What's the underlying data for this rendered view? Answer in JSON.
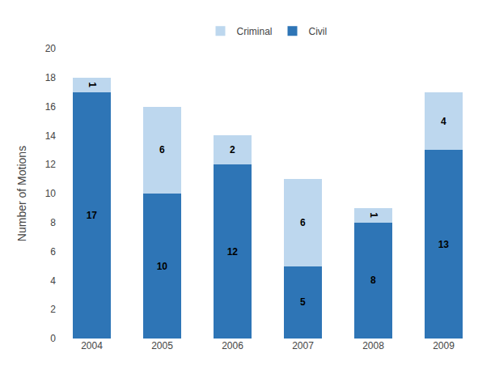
{
  "chart_data": {
    "type": "bar",
    "stacked": true,
    "categories": [
      "2004",
      "2005",
      "2006",
      "2007",
      "2008",
      "2009"
    ],
    "series": [
      {
        "name": "Civil",
        "color": "#2E75B6",
        "values": [
          17,
          10,
          12,
          5,
          8,
          13
        ]
      },
      {
        "name": "Criminal",
        "color": "#BDD7EE",
        "values": [
          1,
          6,
          2,
          6,
          1,
          4
        ]
      }
    ],
    "ylabel": "Number of Motions",
    "ylim": [
      0,
      20
    ],
    "yticks": [
      0,
      2,
      4,
      6,
      8,
      10,
      12,
      14,
      16,
      18,
      20
    ],
    "data_labels": true,
    "grid": false,
    "legend": "top"
  }
}
